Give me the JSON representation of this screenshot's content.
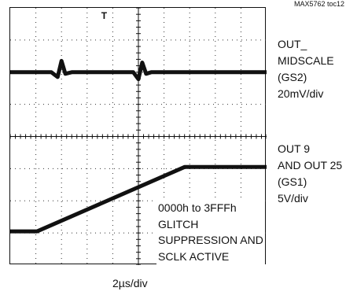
{
  "figure_id": "MAX5762 toc12",
  "chart_data": {
    "type": "line",
    "title": "",
    "xlabel": "2µs/div",
    "grid": {
      "x_divisions": 10,
      "y_divisions": 8,
      "style": "dotted"
    },
    "trigger_marker": "T",
    "channels": [
      {
        "label_lines": [
          "OUT_",
          "MIDSCALE",
          "(GS2)",
          "20mV/div"
        ],
        "baseline_div": 2.0,
        "x_div": [
          0,
          1.6,
          1.85,
          2.0,
          2.15,
          2.4,
          4.0,
          4.8,
          5.0,
          5.15,
          5.3,
          5.5,
          6.5,
          8.0,
          10
        ],
        "y_div": [
          0,
          0,
          0.15,
          -0.35,
          0.05,
          0,
          0,
          0,
          0.22,
          -0.3,
          0.05,
          0,
          0,
          0,
          0
        ]
      },
      {
        "label_lines": [
          "OUT 9",
          "AND OUT 25",
          "(GS1)",
          "5V/div"
        ],
        "x_div": [
          0,
          1.05,
          6.8,
          10
        ],
        "y_div": [
          6.95,
          6.95,
          4.95,
          4.95
        ]
      }
    ],
    "annotation_lines": [
      "0000h to 3FFFh",
      "GLITCH",
      "SUPPRESSION AND",
      "SCLK ACTIVE"
    ]
  }
}
